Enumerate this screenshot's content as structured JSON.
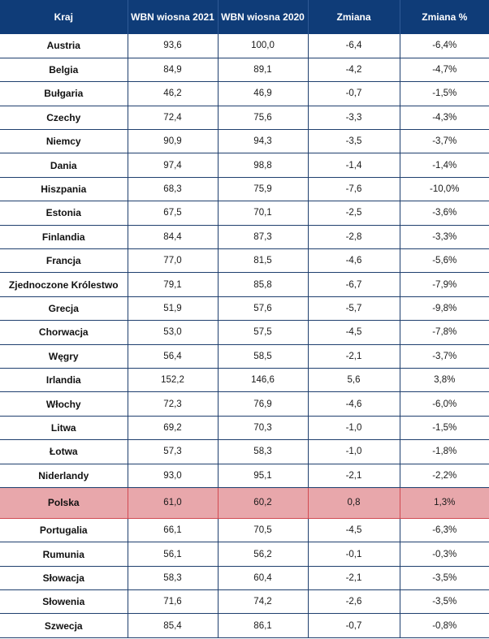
{
  "header": {
    "columns": [
      "Kraj",
      "WBN wiosna 2021",
      "WBN wiosna 2020",
      "Zmiana",
      "Zmiana %"
    ]
  },
  "rows": [
    {
      "country": "Austria",
      "v2021": "93,6",
      "v2020": "100,0",
      "change": "-6,4",
      "change_pct": "-6,4%"
    },
    {
      "country": "Belgia",
      "v2021": "84,9",
      "v2020": "89,1",
      "change": "-4,2",
      "change_pct": "-4,7%"
    },
    {
      "country": "Bułgaria",
      "v2021": "46,2",
      "v2020": "46,9",
      "change": "-0,7",
      "change_pct": "-1,5%"
    },
    {
      "country": "Czechy",
      "v2021": "72,4",
      "v2020": "75,6",
      "change": "-3,3",
      "change_pct": "-4,3%"
    },
    {
      "country": "Niemcy",
      "v2021": "90,9",
      "v2020": "94,3",
      "change": "-3,5",
      "change_pct": "-3,7%"
    },
    {
      "country": "Dania",
      "v2021": "97,4",
      "v2020": "98,8",
      "change": "-1,4",
      "change_pct": "-1,4%"
    },
    {
      "country": "Hiszpania",
      "v2021": "68,3",
      "v2020": "75,9",
      "change": "-7,6",
      "change_pct": "-10,0%"
    },
    {
      "country": "Estonia",
      "v2021": "67,5",
      "v2020": "70,1",
      "change": "-2,5",
      "change_pct": "-3,6%"
    },
    {
      "country": "Finlandia",
      "v2021": "84,4",
      "v2020": "87,3",
      "change": "-2,8",
      "change_pct": "-3,3%"
    },
    {
      "country": "Francja",
      "v2021": "77,0",
      "v2020": "81,5",
      "change": "-4,6",
      "change_pct": "-5,6%"
    },
    {
      "country": "Zjednoczone Królestwo",
      "v2021": "79,1",
      "v2020": "85,8",
      "change": "-6,7",
      "change_pct": "-7,9%"
    },
    {
      "country": "Grecja",
      "v2021": "51,9",
      "v2020": "57,6",
      "change": "-5,7",
      "change_pct": "-9,8%"
    },
    {
      "country": "Chorwacja",
      "v2021": "53,0",
      "v2020": "57,5",
      "change": "-4,5",
      "change_pct": "-7,8%"
    },
    {
      "country": "Węgry",
      "v2021": "56,4",
      "v2020": "58,5",
      "change": "-2,1",
      "change_pct": "-3,7%"
    },
    {
      "country": "Irlandia",
      "v2021": "152,2",
      "v2020": "146,6",
      "change": "5,6",
      "change_pct": "3,8%"
    },
    {
      "country": "Włochy",
      "v2021": "72,3",
      "v2020": "76,9",
      "change": "-4,6",
      "change_pct": "-6,0%"
    },
    {
      "country": "Litwa",
      "v2021": "69,2",
      "v2020": "70,3",
      "change": "-1,0",
      "change_pct": "-1,5%"
    },
    {
      "country": "Łotwa",
      "v2021": "57,3",
      "v2020": "58,3",
      "change": "-1,0",
      "change_pct": "-1,8%"
    },
    {
      "country": "Niderlandy",
      "v2021": "93,0",
      "v2020": "95,1",
      "change": "-2,1",
      "change_pct": "-2,2%"
    },
    {
      "country": "Polska",
      "v2021": "61,0",
      "v2020": "60,2",
      "change": "0,8",
      "change_pct": "1,3%",
      "highlight": true
    },
    {
      "country": "Portugalia",
      "v2021": "66,1",
      "v2020": "70,5",
      "change": "-4,5",
      "change_pct": "-6,3%"
    },
    {
      "country": "Rumunia",
      "v2021": "56,1",
      "v2020": "56,2",
      "change": "-0,1",
      "change_pct": "-0,3%"
    },
    {
      "country": "Słowacja",
      "v2021": "58,3",
      "v2020": "60,4",
      "change": "-2,1",
      "change_pct": "-3,5%"
    },
    {
      "country": "Słowenia",
      "v2021": "71,6",
      "v2020": "74,2",
      "change": "-2,6",
      "change_pct": "-3,5%"
    },
    {
      "country": "Szwecja",
      "v2021": "85,4",
      "v2020": "86,1",
      "change": "-0,7",
      "change_pct": "-0,8%"
    }
  ],
  "colors": {
    "header_bg": "#0f3c78",
    "highlight_bg": "#e8a7ab"
  }
}
